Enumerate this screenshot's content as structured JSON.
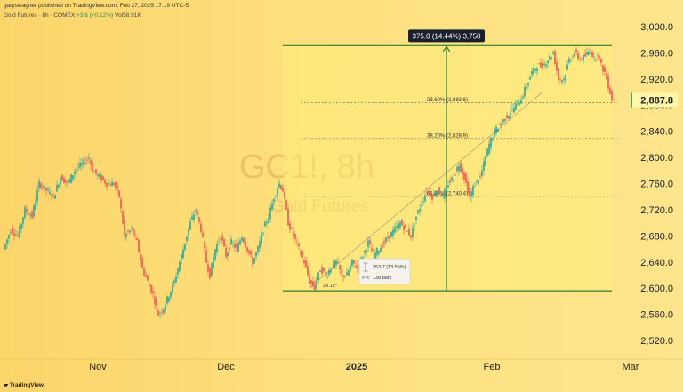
{
  "publish_info": "garyswagner published on TradingView.com, Feb 27, 2025 17:19 UTC-5",
  "legend": {
    "symbol": "Gold Futures · 8h · COMEX",
    "change": "+3.6 (+0.12%)",
    "volume": "Vol58.91K"
  },
  "watermark": {
    "ticker": "GC1!, 8h",
    "name": "Gold Futures"
  },
  "branding": "TradingView",
  "chart_data": {
    "type": "candlestick",
    "ylim": [
      2500,
      3020
    ],
    "y_ticks": [
      "3,000.0",
      "2,960.0",
      "2,920.0",
      "2,880.0",
      "2,840.0",
      "2,800.0",
      "2,760.0",
      "2,720.0",
      "2,680.0",
      "2,640.0",
      "2,600.0",
      "2,560.0",
      "2,520.0"
    ],
    "y_tick_values": [
      3000,
      2960,
      2920,
      2880,
      2840,
      2800,
      2760,
      2720,
      2680,
      2640,
      2600,
      2560,
      2520
    ],
    "x_ticks": [
      "Nov",
      "Dec",
      "2025",
      "Feb",
      "Mar"
    ],
    "current_price": {
      "value": 2887.8,
      "label": "2,887.8",
      "color": "#2e7d32"
    },
    "price_path": [
      [
        0,
        2660
      ],
      [
        8,
        2690
      ],
      [
        16,
        2680
      ],
      [
        24,
        2720
      ],
      [
        32,
        2710
      ],
      [
        40,
        2760
      ],
      [
        48,
        2750
      ],
      [
        56,
        2740
      ],
      [
        64,
        2770
      ],
      [
        72,
        2760
      ],
      [
        80,
        2780
      ],
      [
        88,
        2790
      ],
      [
        96,
        2800
      ],
      [
        100,
        2780
      ],
      [
        108,
        2770
      ],
      [
        116,
        2760
      ],
      [
        124,
        2760
      ],
      [
        130,
        2740
      ],
      [
        136,
        2680
      ],
      [
        144,
        2690
      ],
      [
        150,
        2670
      ],
      [
        156,
        2630
      ],
      [
        162,
        2610
      ],
      [
        168,
        2590
      ],
      [
        174,
        2560
      ],
      [
        180,
        2570
      ],
      [
        186,
        2590
      ],
      [
        192,
        2610
      ],
      [
        198,
        2640
      ],
      [
        204,
        2670
      ],
      [
        210,
        2700
      ],
      [
        216,
        2720
      ],
      [
        222,
        2690
      ],
      [
        228,
        2640
      ],
      [
        232,
        2620
      ],
      [
        238,
        2660
      ],
      [
        244,
        2680
      ],
      [
        250,
        2650
      ],
      [
        256,
        2670
      ],
      [
        262,
        2660
      ],
      [
        268,
        2680
      ],
      [
        274,
        2660
      ],
      [
        280,
        2640
      ],
      [
        286,
        2660
      ],
      [
        292,
        2690
      ],
      [
        298,
        2710
      ],
      [
        304,
        2740
      ],
      [
        310,
        2760
      ],
      [
        314,
        2750
      ],
      [
        320,
        2700
      ],
      [
        326,
        2680
      ],
      [
        332,
        2660
      ],
      [
        338,
        2640
      ],
      [
        344,
        2610
      ],
      [
        350,
        2600
      ],
      [
        356,
        2630
      ],
      [
        362,
        2620
      ],
      [
        368,
        2630
      ],
      [
        374,
        2640
      ],
      [
        380,
        2620
      ],
      [
        386,
        2620
      ],
      [
        392,
        2640
      ],
      [
        398,
        2630
      ],
      [
        404,
        2650
      ],
      [
        410,
        2670
      ],
      [
        416,
        2650
      ],
      [
        422,
        2660
      ],
      [
        428,
        2670
      ],
      [
        434,
        2680
      ],
      [
        440,
        2690
      ],
      [
        446,
        2700
      ],
      [
        452,
        2690
      ],
      [
        458,
        2680
      ],
      [
        464,
        2710
      ],
      [
        470,
        2730
      ],
      [
        476,
        2750
      ],
      [
        482,
        2740
      ],
      [
        488,
        2750
      ],
      [
        494,
        2740
      ],
      [
        500,
        2760
      ],
      [
        506,
        2770
      ],
      [
        512,
        2790
      ],
      [
        518,
        2770
      ],
      [
        524,
        2740
      ],
      [
        530,
        2760
      ],
      [
        536,
        2770
      ],
      [
        540,
        2790
      ],
      [
        546,
        2820
      ],
      [
        552,
        2840
      ],
      [
        558,
        2850
      ],
      [
        564,
        2860
      ],
      [
        570,
        2870
      ],
      [
        576,
        2880
      ],
      [
        582,
        2890
      ],
      [
        588,
        2910
      ],
      [
        594,
        2930
      ],
      [
        600,
        2940
      ],
      [
        606,
        2940
      ],
      [
        612,
        2950
      ],
      [
        618,
        2960
      ],
      [
        624,
        2920
      ],
      [
        630,
        2920
      ],
      [
        636,
        2950
      ],
      [
        642,
        2960
      ],
      [
        648,
        2950
      ],
      [
        654,
        2955
      ],
      [
        660,
        2965
      ],
      [
        664,
        2950
      ],
      [
        668,
        2960
      ],
      [
        672,
        2940
      ],
      [
        676,
        2930
      ],
      [
        680,
        2910
      ],
      [
        684,
        2890
      ],
      [
        686,
        2887.8
      ]
    ],
    "measure": {
      "label": "375.0 (14.44%) 3,750",
      "low": 2596,
      "high": 2971,
      "color": "#2e7d32"
    },
    "fib_levels": [
      {
        "label": "23.60% (2,883.6)",
        "value": 2883.6
      },
      {
        "label": "38.20% (2,828.9)",
        "value": 2828.9
      },
      {
        "label": "61.80% (2,740.4)",
        "value": 2740.4
      }
    ],
    "annotation": {
      "line1": "353.7 (13.55%)",
      "line2": "138 bars",
      "angle": "29.12°"
    }
  }
}
